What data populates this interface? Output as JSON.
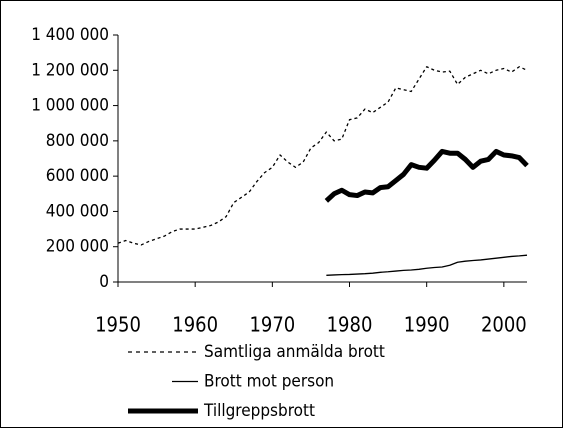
{
  "chart_data": {
    "type": "line",
    "x": [
      1950,
      1951,
      1952,
      1953,
      1954,
      1955,
      1956,
      1957,
      1958,
      1959,
      1960,
      1961,
      1962,
      1963,
      1964,
      1965,
      1966,
      1967,
      1968,
      1969,
      1970,
      1971,
      1972,
      1973,
      1974,
      1975,
      1976,
      1977,
      1978,
      1979,
      1980,
      1981,
      1982,
      1983,
      1984,
      1985,
      1986,
      1987,
      1988,
      1989,
      1990,
      1991,
      1992,
      1993,
      1994,
      1995,
      1996,
      1997,
      1998,
      1999,
      2000,
      2001,
      2002,
      2003
    ],
    "xlim": [
      1950,
      2003
    ],
    "xticks": [
      1950,
      1960,
      1970,
      1980,
      1990,
      2000
    ],
    "ylim": [
      0,
      1400000
    ],
    "yticks": [
      0,
      {
        "value": 200000,
        "label": "200 000"
      },
      {
        "value": 400000,
        "label": "400 000"
      },
      {
        "value": 600000,
        "label": "600 000"
      },
      {
        "value": 800000,
        "label": "800 000"
      },
      {
        "value": 1000000,
        "label": "1 000 000"
      },
      {
        "value": 1200000,
        "label": "1 200 000"
      },
      {
        "value": 1400000,
        "label": "1 400 000"
      }
    ],
    "series": [
      {
        "name": "Samtliga anmälda brott",
        "color": "#000000",
        "width": 1.3,
        "dash": true,
        "values": [
          220000,
          235000,
          220000,
          210000,
          230000,
          245000,
          260000,
          285000,
          300000,
          300000,
          300000,
          310000,
          320000,
          340000,
          370000,
          450000,
          480000,
          510000,
          570000,
          620000,
          650000,
          720000,
          680000,
          650000,
          680000,
          760000,
          790000,
          850000,
          800000,
          810000,
          920000,
          930000,
          980000,
          960000,
          990000,
          1020000,
          1100000,
          1090000,
          1080000,
          1150000,
          1220000,
          1200000,
          1190000,
          1195000,
          1120000,
          1160000,
          1180000,
          1200000,
          1180000,
          1200000,
          1210000,
          1190000,
          1220000,
          1200000
        ]
      },
      {
        "name": "Brott mot person",
        "color": "#000000",
        "width": 1.3,
        "dash": false,
        "values": [
          null,
          null,
          null,
          null,
          null,
          null,
          null,
          null,
          null,
          null,
          null,
          null,
          null,
          null,
          null,
          null,
          null,
          null,
          null,
          null,
          null,
          null,
          null,
          null,
          null,
          null,
          null,
          38000,
          40000,
          42000,
          43000,
          45000,
          47000,
          50000,
          55000,
          58000,
          62000,
          66000,
          68000,
          72000,
          78000,
          82000,
          85000,
          95000,
          112000,
          118000,
          122000,
          125000,
          130000,
          135000,
          140000,
          145000,
          148000,
          152000
        ]
      },
      {
        "name": "Tillgreppsbrott",
        "color": "#000000",
        "width": 5,
        "dash": false,
        "values": [
          null,
          null,
          null,
          null,
          null,
          null,
          null,
          null,
          null,
          null,
          null,
          null,
          null,
          null,
          null,
          null,
          null,
          null,
          null,
          null,
          null,
          null,
          null,
          null,
          null,
          null,
          null,
          460000,
          500000,
          520000,
          495000,
          490000,
          510000,
          505000,
          535000,
          540000,
          575000,
          610000,
          665000,
          650000,
          645000,
          690000,
          740000,
          730000,
          730000,
          695000,
          650000,
          685000,
          695000,
          740000,
          720000,
          715000,
          705000,
          660000
        ]
      }
    ]
  }
}
